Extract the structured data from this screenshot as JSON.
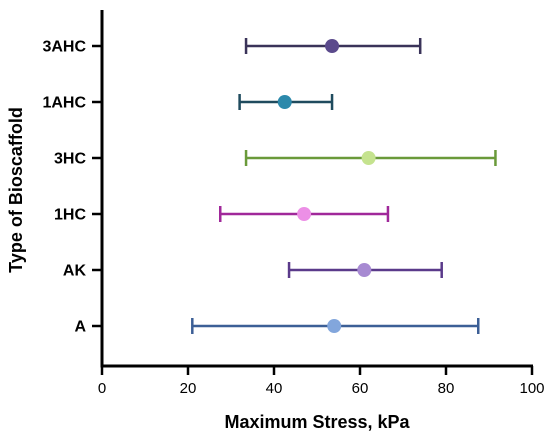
{
  "chart_data": {
    "type": "scatter",
    "orientation": "horizontal",
    "title": "",
    "xlabel": "Maximum Stress, kPa",
    "ylabel": "Type of Bioscaffold",
    "xlim": [
      0,
      100
    ],
    "x_ticks": [
      0,
      20,
      40,
      60,
      80,
      100
    ],
    "x_tick_labels": [
      "0",
      "20",
      "40",
      "60",
      "80",
      "100"
    ],
    "grid": false,
    "legend": "none",
    "error_bars": true,
    "categories": [
      "3AHC",
      "1AHC",
      "3HC",
      "1HC",
      "AK",
      "A"
    ],
    "points": [
      {
        "category": "3AHC",
        "mean": 53.5,
        "low": 33.5,
        "high": 74,
        "color": "#5b4a8c",
        "bar_color": "#3a3359"
      },
      {
        "category": "1AHC",
        "mean": 42.5,
        "low": 32,
        "high": 53.5,
        "color": "#2c89ab",
        "bar_color": "#1f4b5e"
      },
      {
        "category": "3HC",
        "mean": 62,
        "low": 33.5,
        "high": 91.5,
        "color": "#c5e38f",
        "bar_color": "#6a9a3a"
      },
      {
        "category": "1HC",
        "mean": 47,
        "low": 27.5,
        "high": 66.5,
        "color": "#ec8fe6",
        "bar_color": "#a0289a"
      },
      {
        "category": "AK",
        "mean": 61,
        "low": 43.5,
        "high": 79,
        "color": "#a78ad2",
        "bar_color": "#5a3a8a"
      },
      {
        "category": "A",
        "mean": 54,
        "low": 21,
        "high": 87.5,
        "color": "#82a6dc",
        "bar_color": "#3c5f96"
      }
    ]
  }
}
